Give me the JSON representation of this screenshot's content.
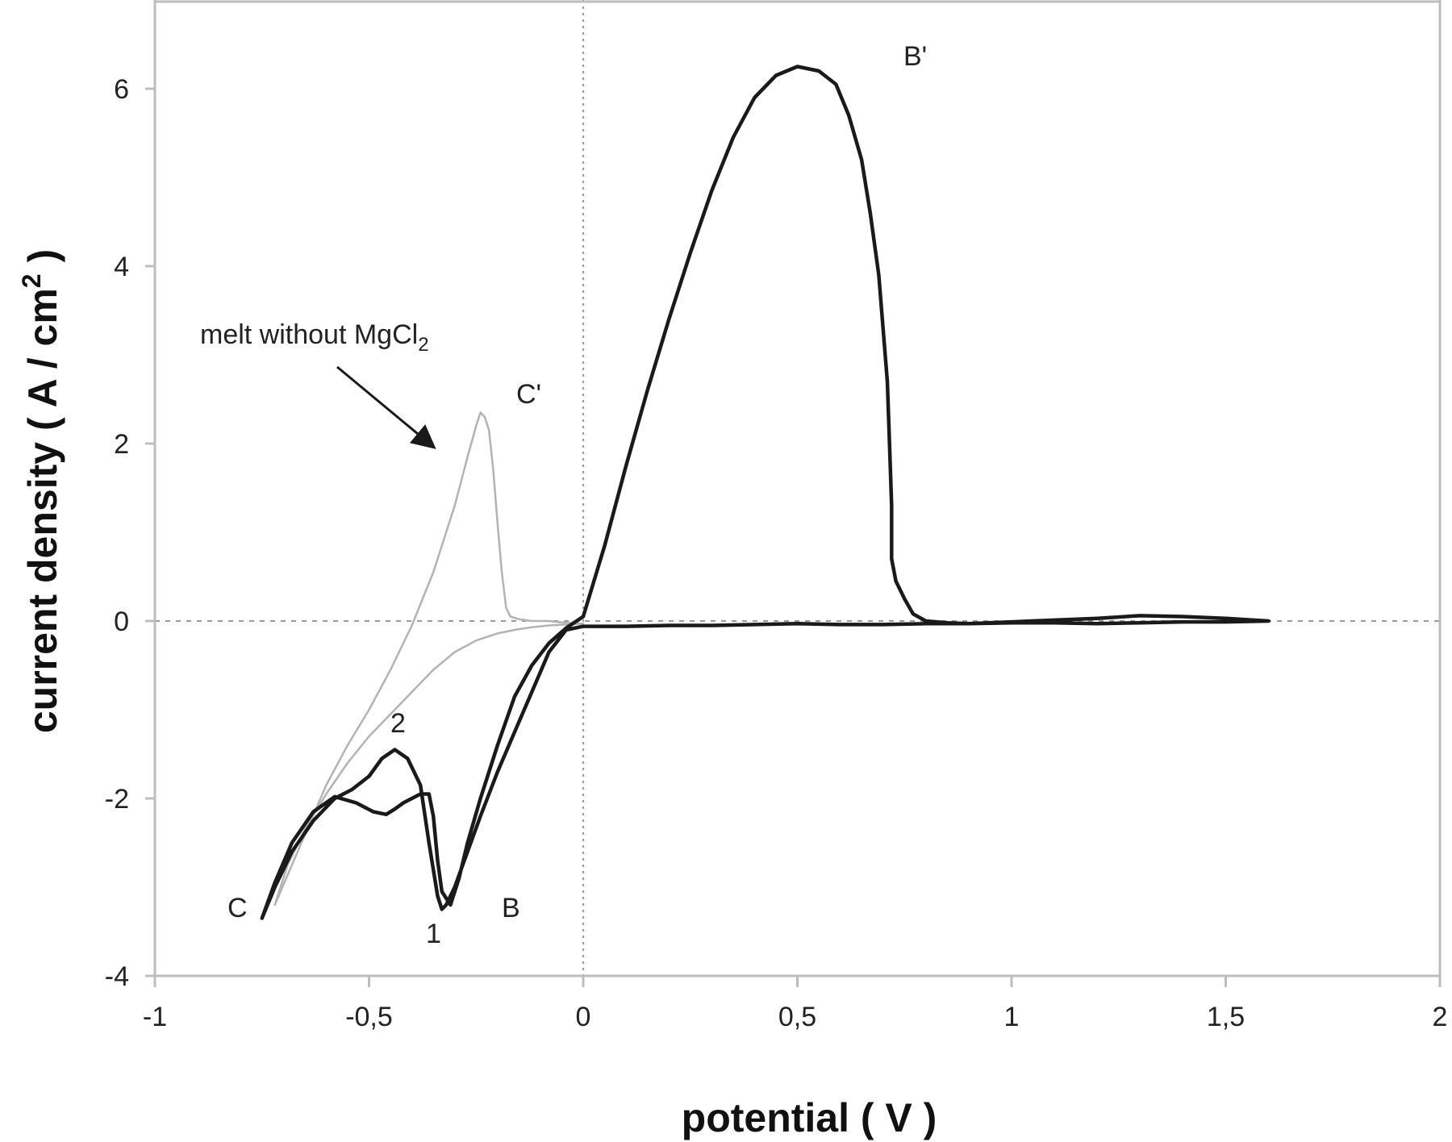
{
  "chart_data": {
    "type": "line",
    "title": "",
    "xlabel": "potential ( V )",
    "ylabel_main": "current density ( A / cm",
    "ylabel_sup": "2",
    "ylabel_end": " )",
    "xlim": [
      -1,
      2
    ],
    "ylim": [
      -4,
      7
    ],
    "xticks": [
      -1,
      -0.5,
      0,
      0.5,
      1,
      1.5,
      2
    ],
    "xtick_labels": [
      "-1",
      "-0,5",
      "0",
      "0,5",
      "1",
      "1,5",
      "2"
    ],
    "yticks": [
      -4,
      -2,
      0,
      2,
      4,
      6
    ],
    "ytick_labels": [
      "-4",
      "-2",
      "0",
      "2",
      "4",
      "6"
    ],
    "grid": false,
    "reference_lines": {
      "x": 0,
      "y": 0
    },
    "colors": {
      "main": "#1a1a1a",
      "melt": "#b3b3b3",
      "axes": "#bdbdbd",
      "ref": "#9a9a9a"
    },
    "series": [
      {
        "x": [
          -0.75,
          -0.72,
          -0.68,
          -0.63,
          -0.58,
          -0.53,
          -0.49,
          -0.46,
          -0.44,
          -0.42,
          -0.4,
          -0.38,
          -0.36,
          -0.35,
          -0.34,
          -0.33,
          -0.31,
          -0.29,
          -0.27,
          -0.24,
          -0.2,
          -0.16,
          -0.12,
          -0.08,
          -0.04,
          0.0,
          0.05,
          0.1,
          0.15,
          0.2,
          0.25,
          0.3,
          0.35,
          0.4,
          0.45,
          0.5,
          0.55,
          0.59,
          0.62,
          0.65,
          0.67,
          0.69,
          0.7,
          0.71,
          0.715,
          0.72,
          0.72,
          0.73,
          0.75,
          0.77,
          0.8,
          0.85,
          0.9,
          1.0,
          1.1,
          1.2,
          1.3,
          1.4,
          1.5,
          1.6,
          1.5,
          1.4,
          1.3,
          1.2,
          1.1,
          1.0,
          0.9,
          0.8,
          0.7,
          0.6,
          0.5,
          0.4,
          0.3,
          0.2,
          0.1,
          0.0,
          -0.04,
          -0.08,
          -0.12,
          -0.16,
          -0.2,
          -0.24,
          -0.27,
          -0.3,
          -0.32,
          -0.33,
          -0.34,
          -0.36,
          -0.38,
          -0.41,
          -0.44,
          -0.47,
          -0.5,
          -0.54,
          -0.58,
          -0.63,
          -0.68,
          -0.72,
          -0.75
        ],
        "y": [
          -3.35,
          -2.95,
          -2.5,
          -2.15,
          -1.98,
          -2.05,
          -2.15,
          -2.18,
          -2.12,
          -2.05,
          -2.0,
          -1.95,
          -1.95,
          -2.2,
          -2.7,
          -3.05,
          -3.2,
          -2.9,
          -2.5,
          -2.0,
          -1.4,
          -0.85,
          -0.5,
          -0.25,
          -0.08,
          0.05,
          0.85,
          1.75,
          2.6,
          3.4,
          4.15,
          4.85,
          5.45,
          5.9,
          6.15,
          6.25,
          6.2,
          6.05,
          5.7,
          5.2,
          4.6,
          3.9,
          3.3,
          2.7,
          2.0,
          1.3,
          0.7,
          0.45,
          0.25,
          0.08,
          0.0,
          -0.02,
          -0.03,
          -0.01,
          0.01,
          0.03,
          0.06,
          0.05,
          0.03,
          0.0,
          -0.01,
          -0.01,
          -0.02,
          -0.03,
          -0.02,
          -0.02,
          -0.03,
          -0.03,
          -0.04,
          -0.04,
          -0.03,
          -0.04,
          -0.05,
          -0.05,
          -0.06,
          -0.06,
          -0.1,
          -0.35,
          -0.8,
          -1.25,
          -1.7,
          -2.2,
          -2.6,
          -3.0,
          -3.2,
          -3.25,
          -3.1,
          -2.5,
          -1.85,
          -1.55,
          -1.45,
          -1.55,
          -1.75,
          -1.9,
          -2.0,
          -2.25,
          -2.6,
          -3.0,
          -3.35
        ]
      },
      {
        "x": [
          -0.72,
          -0.68,
          -0.64,
          -0.6,
          -0.55,
          -0.5,
          -0.45,
          -0.4,
          -0.35,
          -0.3,
          -0.27,
          -0.25,
          -0.24,
          -0.23,
          -0.22,
          -0.21,
          -0.2,
          -0.19,
          -0.18,
          -0.17,
          -0.15,
          -0.12,
          -0.08,
          -0.04,
          0.0,
          -0.04,
          -0.08,
          -0.12,
          -0.16,
          -0.2,
          -0.25,
          -0.3,
          -0.35,
          -0.4,
          -0.45,
          -0.5,
          -0.55,
          -0.6,
          -0.65,
          -0.69,
          -0.72
        ],
        "y": [
          -3.2,
          -2.75,
          -2.3,
          -1.85,
          -1.4,
          -1.0,
          -0.55,
          -0.05,
          0.55,
          1.3,
          1.85,
          2.2,
          2.35,
          2.3,
          2.15,
          1.7,
          1.1,
          0.55,
          0.15,
          0.05,
          0.02,
          0.0,
          0.0,
          -0.02,
          -0.03,
          -0.04,
          -0.05,
          -0.07,
          -0.1,
          -0.14,
          -0.22,
          -0.35,
          -0.55,
          -0.8,
          -1.05,
          -1.3,
          -1.6,
          -1.95,
          -2.35,
          -2.75,
          -3.2
        ]
      }
    ],
    "annotations": {
      "melt_label_main": "melt without MgCl",
      "melt_label_sub": "2",
      "B_prime": "B'",
      "C_prime": "C'",
      "C": "C",
      "B": "B",
      "peak_1": "1",
      "peak_2": "2"
    }
  }
}
